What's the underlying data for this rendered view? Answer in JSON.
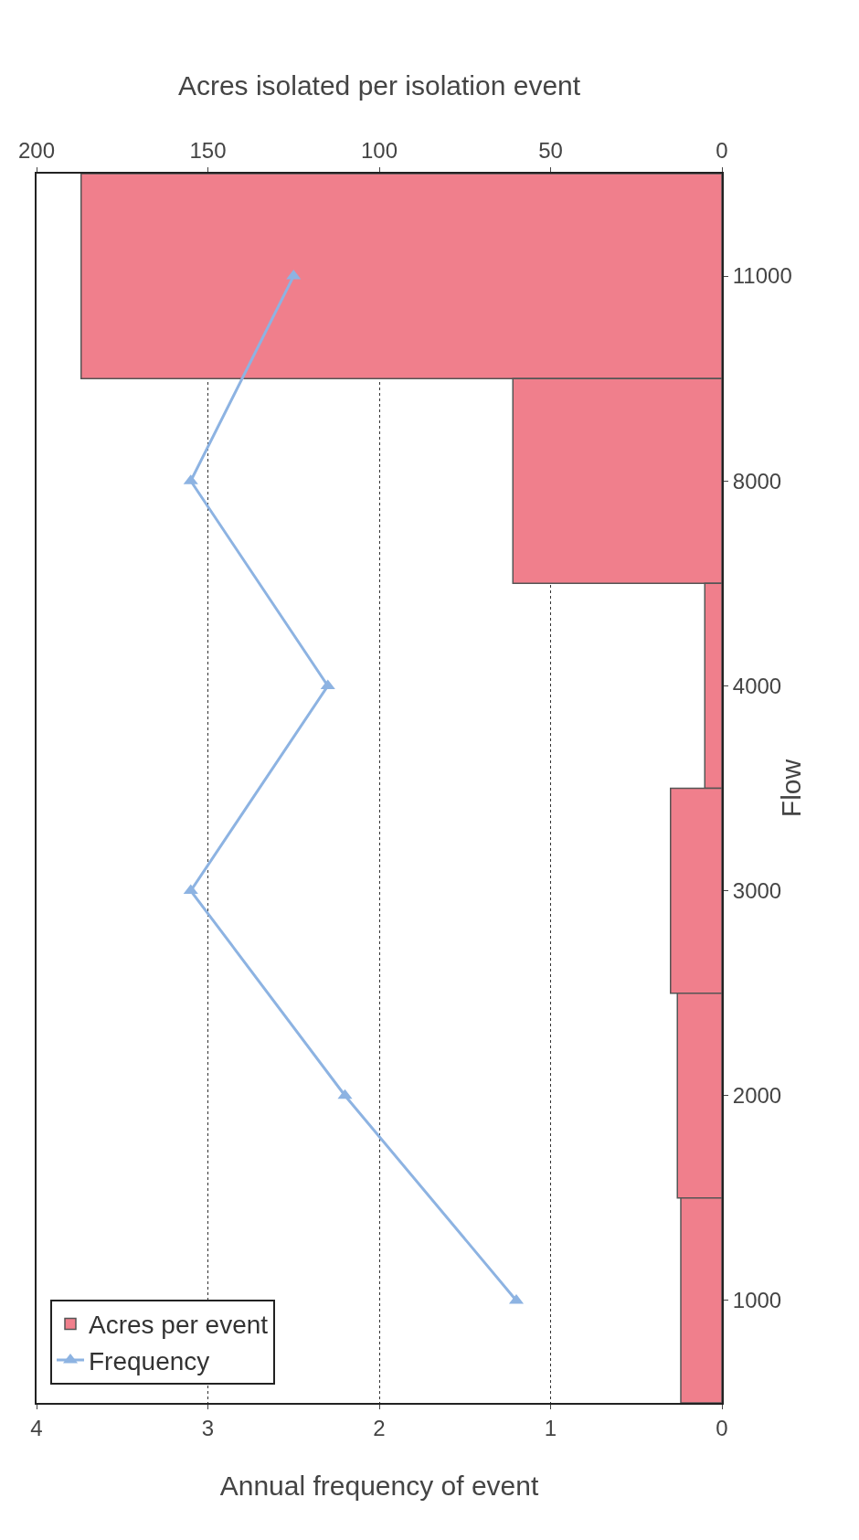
{
  "chart_data": {
    "type": "bar",
    "orientation": "horizontal",
    "categories": [
      "11000",
      "8000",
      "4000",
      "3000",
      "2000",
      "1000"
    ],
    "ylabel": "Flow",
    "xlabel": "Annual frequency of event",
    "x2label": "Acres isolated per isolation event",
    "series": [
      {
        "name": "Frequency",
        "type": "line",
        "color": "#8db3e2",
        "values": [
          2.5,
          3.1,
          2.3,
          3.1,
          2.2,
          1.2
        ]
      },
      {
        "name": "Acres per event",
        "axis": "x2",
        "color": "#f07f8c",
        "values": [
          187,
          61,
          5,
          15,
          13,
          12
        ]
      }
    ],
    "xlim": [
      4,
      0
    ],
    "xticks": [
      4,
      3,
      2,
      1,
      0
    ],
    "x2lim": [
      200,
      0
    ],
    "x2ticks": [
      200,
      150,
      100,
      50,
      0
    ],
    "grid": "x",
    "legend": "bottom left",
    "marker": "triangle"
  }
}
